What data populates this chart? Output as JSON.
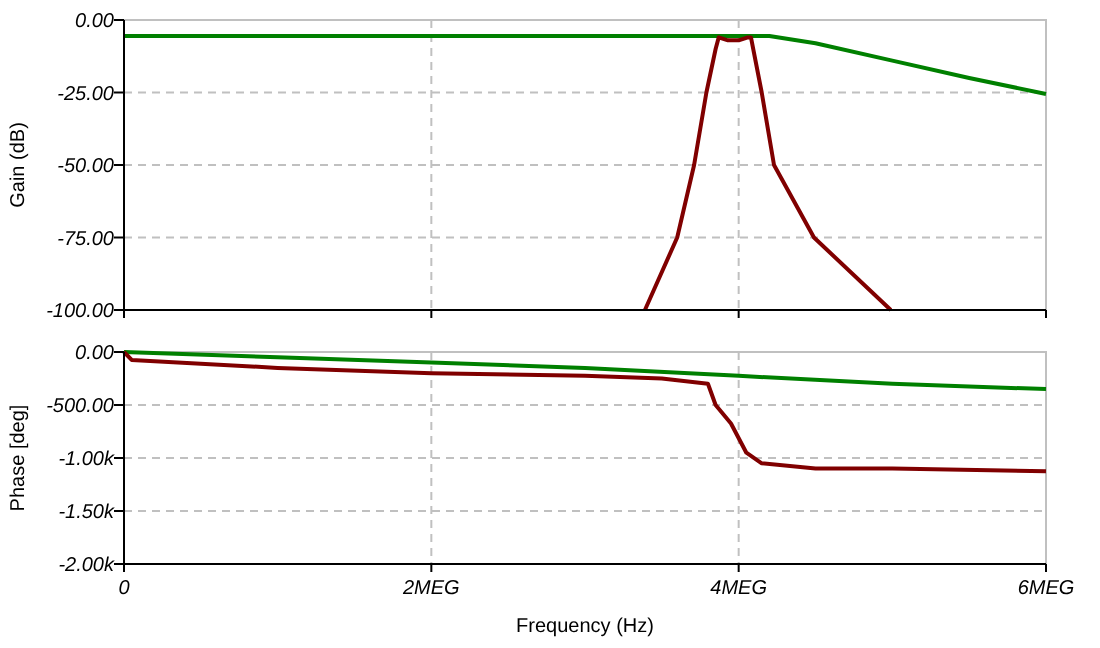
{
  "chart_data": [
    {
      "type": "line",
      "ylabel": "Gain (dB)",
      "xlim": [
        0,
        6
      ],
      "xticks": [
        0,
        2,
        4,
        6
      ],
      "ylim": [
        -100,
        0
      ],
      "yticks": [
        {
          "value": -100,
          "label": "-100.00"
        },
        {
          "value": -75,
          "label": "-75.00"
        },
        {
          "value": -50,
          "label": "-50.00"
        },
        {
          "value": -25,
          "label": "-25.00"
        },
        {
          "value": 0,
          "label": "0.00"
        }
      ],
      "grid": true,
      "tick_labels": "y",
      "marker": "none",
      "line_style": "solid",
      "series": [
        {
          "color": "#008000",
          "x": [
            0,
            1,
            2,
            3,
            4,
            4.2,
            4.5,
            5,
            5.5,
            6
          ],
          "values": [
            -5.5,
            -5.5,
            -5.5,
            -5.5,
            -5.5,
            -5.5,
            -8,
            -14,
            -20,
            -25.5
          ]
        },
        {
          "color": "#800000",
          "x": [
            3.39,
            3.6,
            3.71,
            3.79,
            3.85,
            3.87,
            3.93,
            4,
            4.06,
            4.08,
            4.15,
            4.23,
            4.49,
            4.99
          ],
          "values": [
            -100,
            -75,
            -50,
            -25,
            -10,
            -6,
            -7,
            -7,
            -6,
            -6,
            -25,
            -50,
            -75,
            -100
          ]
        }
      ]
    },
    {
      "type": "line",
      "xlabel": "Frequency (Hz)",
      "ylabel": "Phase [deg]",
      "xlim": [
        0,
        6
      ],
      "xticks": [
        {
          "value": 0,
          "label": "0"
        },
        {
          "value": 2,
          "label": "2MEG"
        },
        {
          "value": 4,
          "label": "4MEG"
        },
        {
          "value": 6,
          "label": "6MEG"
        }
      ],
      "ylim": [
        -2000,
        0
      ],
      "yticks": [
        {
          "value": -2000,
          "label": "-2.00k"
        },
        {
          "value": -1500,
          "label": "-1.50k"
        },
        {
          "value": -1000,
          "label": "-1.00k"
        },
        {
          "value": -500,
          "label": "-500.00"
        },
        {
          "value": 0,
          "label": "0.00"
        }
      ],
      "grid": true,
      "marker": "none",
      "line_style": "solid",
      "series": [
        {
          "color": "#008000",
          "x": [
            0,
            1,
            2,
            3,
            4,
            5,
            6
          ],
          "values": [
            0,
            -50,
            -100,
            -150,
            -225,
            -300,
            -350
          ]
        },
        {
          "color": "#800000",
          "x": [
            0,
            0.05,
            1,
            2,
            3,
            3.5,
            3.8,
            3.85,
            3.95,
            4.05,
            4.15,
            4.5,
            5,
            6
          ],
          "values": [
            0,
            -75,
            -150,
            -200,
            -225,
            -250,
            -300,
            -500,
            -675,
            -950,
            -1050,
            -1100,
            -1100,
            -1125
          ]
        }
      ]
    }
  ]
}
